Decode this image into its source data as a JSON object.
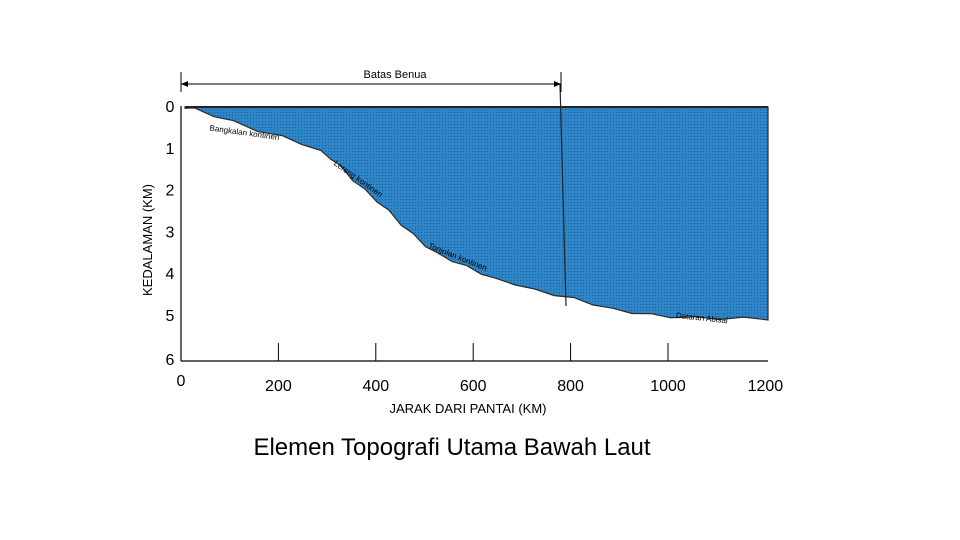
{
  "slide": {
    "title": "Elemen Topografi Utama Bawah Laut"
  },
  "diagram": {
    "bracket_label": "Batas Benua",
    "y_axis": {
      "title": "KEDALAMAN (KM)",
      "ticks": [
        "0",
        "1",
        "2",
        "3",
        "4",
        "5",
        "6"
      ]
    },
    "x_axis": {
      "title": "JARAK DARI PANTAI (KM)",
      "ticks": [
        "0",
        "200",
        "400",
        "600",
        "800",
        "1000",
        "1200"
      ]
    },
    "features": [
      {
        "label": "Bangkalan kontinen",
        "distance_km": 50,
        "depth_km": 0.55,
        "angle": 8
      },
      {
        "label": "Lereng kontinen",
        "distance_km": 305,
        "depth_km": 1.35,
        "angle": 35
      },
      {
        "label": "Tonjolan kontinen",
        "distance_km": 500,
        "depth_km": 3.3,
        "angle": 22
      },
      {
        "label": "Dataran Abisal",
        "distance_km": 1010,
        "depth_km": 4.95,
        "angle": 6
      }
    ],
    "profile": [
      [
        0,
        0
      ],
      [
        20,
        0.05
      ],
      [
        60,
        0.2
      ],
      [
        100,
        0.35
      ],
      [
        150,
        0.55
      ],
      [
        200,
        0.7
      ],
      [
        240,
        0.85
      ],
      [
        280,
        1.05
      ],
      [
        300,
        1.2
      ],
      [
        320,
        1.4
      ],
      [
        345,
        1.7
      ],
      [
        370,
        1.95
      ],
      [
        395,
        2.2
      ],
      [
        420,
        2.45
      ],
      [
        445,
        2.75
      ],
      [
        470,
        3.0
      ],
      [
        495,
        3.25
      ],
      [
        520,
        3.45
      ],
      [
        550,
        3.6
      ],
      [
        580,
        3.75
      ],
      [
        610,
        3.9
      ],
      [
        640,
        4.05
      ],
      [
        680,
        4.15
      ],
      [
        720,
        4.3
      ],
      [
        760,
        4.4
      ],
      [
        800,
        4.5
      ],
      [
        840,
        4.62
      ],
      [
        880,
        4.75
      ],
      [
        920,
        4.82
      ],
      [
        960,
        4.88
      ],
      [
        1000,
        4.92
      ],
      [
        1050,
        4.95
      ],
      [
        1100,
        4.96
      ],
      [
        1150,
        4.96
      ],
      [
        1200,
        4.97
      ]
    ],
    "colors": {
      "water": "#2e86c8",
      "water_pattern": "#1b5f9e",
      "axis": "#000000"
    }
  }
}
